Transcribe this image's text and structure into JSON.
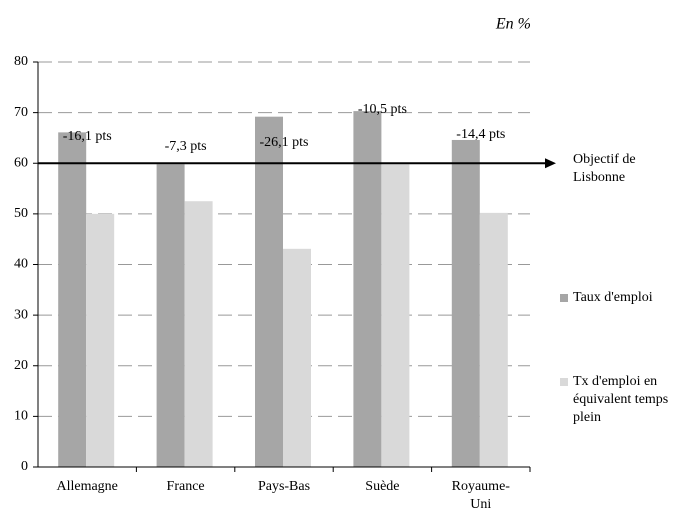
{
  "chart_data": {
    "type": "bar",
    "subtitle": "En %",
    "categories": [
      "Allemagne",
      "France",
      "Pays-Bas",
      "Suède",
      "Royaume-Uni"
    ],
    "series": [
      {
        "name": "Taux d'emploi",
        "color": "#a6a6a6",
        "values": [
          66.1,
          59.8,
          69.2,
          70.3,
          64.6
        ]
      },
      {
        "name": "Tx d'emploi en équivalent temps plein",
        "color": "#d9d9d9",
        "values": [
          50.0,
          52.5,
          43.1,
          59.8,
          50.2
        ]
      }
    ],
    "annotations": [
      "-16,1 pts",
      "-7,3 pts",
      "-26,1 pts",
      "-10,5 pts",
      "-14,4 pts"
    ],
    "target": {
      "value": 60,
      "label": "Objectif de Lisbonne"
    },
    "ylim": [
      0,
      80
    ],
    "yticks": [
      0,
      10,
      20,
      30,
      40,
      50,
      60,
      70,
      80
    ],
    "grid": true
  }
}
